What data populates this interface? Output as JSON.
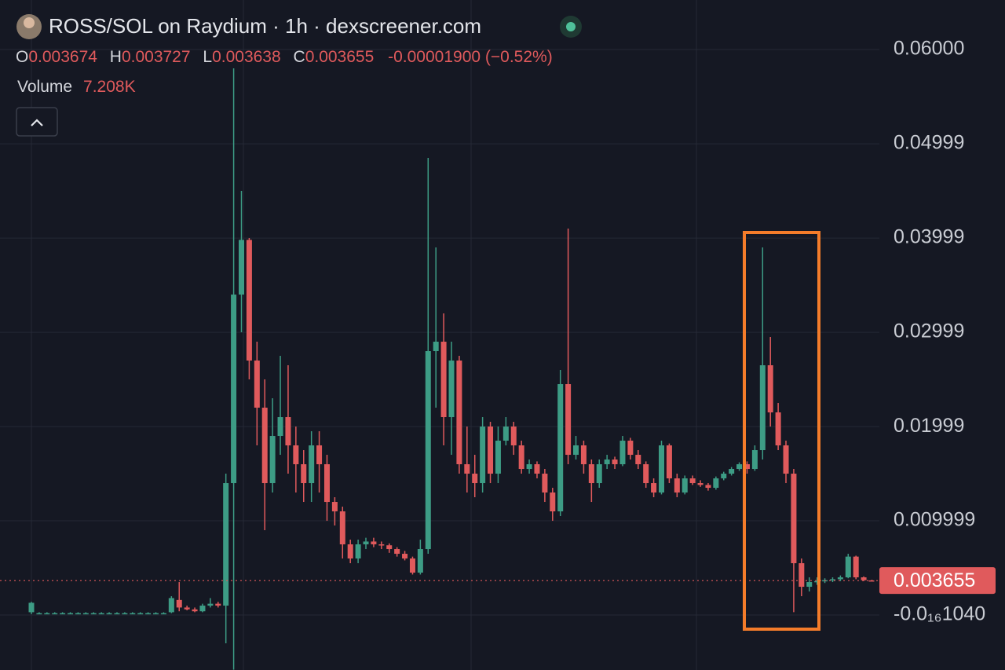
{
  "header": {
    "title": "ROSS/SOL on Raydium · 1h · dexscreener.com",
    "open_label": "O",
    "open": 0.003674,
    "high_label": "H",
    "high": 0.003727,
    "low_label": "L",
    "low": 0.003638,
    "close_label": "C",
    "close": 0.003655,
    "change": "-0.00001900 (−0.52%)",
    "volume_label": "Volume",
    "volume": "7.208K"
  },
  "chart_data": {
    "type": "candlestick",
    "up_color": "#3d9c85",
    "down_color": "#e05a5c",
    "grid": true,
    "last_price": 0.003655,
    "ylim": [
      -0.00583,
      0.06525
    ],
    "yticks": [
      {
        "value": -1.04e-17,
        "label": "-0.0₁₆1040"
      },
      0.009999,
      0.01999,
      0.02999,
      0.03999,
      0.04999,
      {
        "value": 0.06,
        "label": "0.06000"
      }
    ],
    "candles": [
      [
        0.0003,
        0.0014,
        0.0001,
        0.0013
      ],
      [
        0.0002,
        0.0003,
        0.0001,
        0.0002
      ],
      [
        0.0002,
        0.0003,
        0.0001,
        0.0002
      ],
      [
        0.0002,
        0.0003,
        0.0001,
        0.0002
      ],
      [
        0.0002,
        0.0003,
        0.0001,
        0.0002
      ],
      [
        0.0002,
        0.0003,
        0.0001,
        0.0002
      ],
      [
        0.0002,
        0.0003,
        0.0001,
        0.0002
      ],
      [
        0.0002,
        0.0003,
        0.0001,
        0.0002
      ],
      [
        0.0002,
        0.0003,
        0.0001,
        0.0002
      ],
      [
        0.0002,
        0.0003,
        0.0001,
        0.0002
      ],
      [
        0.0002,
        0.0003,
        0.0001,
        0.0002
      ],
      [
        0.0002,
        0.0003,
        0.0001,
        0.0002
      ],
      [
        0.0002,
        0.0003,
        0.0001,
        0.0002
      ],
      [
        0.0002,
        0.0003,
        0.0001,
        0.0002
      ],
      [
        0.0002,
        0.0003,
        0.0001,
        0.0002
      ],
      [
        0.0002,
        0.0003,
        0.0001,
        0.0002
      ],
      [
        0.0002,
        0.0003,
        0.0001,
        0.0002
      ],
      [
        0.0002,
        0.0003,
        0.0001,
        0.0002
      ],
      [
        0.0003,
        0.002,
        0.0002,
        0.0018
      ],
      [
        0.0016,
        0.0035,
        0.0004,
        0.0008
      ],
      [
        0.0008,
        0.001,
        0.0005,
        0.0006
      ],
      [
        0.0006,
        0.0008,
        0.0003,
        0.0004
      ],
      [
        0.0004,
        0.0012,
        0.0003,
        0.001
      ],
      [
        0.001,
        0.0018,
        0.0008,
        0.0012
      ],
      [
        0.0012,
        0.0014,
        0.0008,
        0.001
      ],
      [
        0.001,
        0.015,
        -0.003,
        0.014
      ],
      [
        0.014,
        0.058,
        -0.0058,
        0.034
      ],
      [
        0.034,
        0.045,
        0.03,
        0.0398
      ],
      [
        0.0398,
        0.04,
        0.025,
        0.027
      ],
      [
        0.027,
        0.029,
        0.018,
        0.022
      ],
      [
        0.022,
        0.025,
        0.009,
        0.014
      ],
      [
        0.014,
        0.023,
        0.013,
        0.019
      ],
      [
        0.019,
        0.0275,
        0.017,
        0.021
      ],
      [
        0.021,
        0.0265,
        0.015,
        0.018
      ],
      [
        0.018,
        0.02,
        0.013,
        0.016
      ],
      [
        0.016,
        0.0175,
        0.012,
        0.014
      ],
      [
        0.014,
        0.0195,
        0.012,
        0.018
      ],
      [
        0.018,
        0.0195,
        0.013,
        0.016
      ],
      [
        0.016,
        0.017,
        0.01,
        0.012
      ],
      [
        0.012,
        0.0125,
        0.0095,
        0.011
      ],
      [
        0.011,
        0.0115,
        0.006,
        0.0075
      ],
      [
        0.0075,
        0.008,
        0.0055,
        0.006
      ],
      [
        0.006,
        0.008,
        0.0055,
        0.0075
      ],
      [
        0.0075,
        0.0082,
        0.007,
        0.0078
      ],
      [
        0.0078,
        0.0082,
        0.0072,
        0.0075
      ],
      [
        0.0075,
        0.0078,
        0.007,
        0.0074
      ],
      [
        0.0074,
        0.0076,
        0.0066,
        0.007
      ],
      [
        0.007,
        0.0072,
        0.0062,
        0.0065
      ],
      [
        0.0065,
        0.0068,
        0.0058,
        0.006
      ],
      [
        0.006,
        0.0062,
        0.0043,
        0.0045
      ],
      [
        0.0045,
        0.008,
        0.0043,
        0.007
      ],
      [
        0.007,
        0.0485,
        0.0065,
        0.028
      ],
      [
        0.028,
        0.039,
        0.022,
        0.029
      ],
      [
        0.029,
        0.032,
        0.018,
        0.021
      ],
      [
        0.021,
        0.029,
        0.017,
        0.027
      ],
      [
        0.027,
        0.0275,
        0.015,
        0.016
      ],
      [
        0.016,
        0.02,
        0.013,
        0.015
      ],
      [
        0.015,
        0.017,
        0.0125,
        0.014
      ],
      [
        0.014,
        0.021,
        0.013,
        0.02
      ],
      [
        0.02,
        0.0205,
        0.014,
        0.015
      ],
      [
        0.015,
        0.02,
        0.014,
        0.0185
      ],
      [
        0.0185,
        0.021,
        0.018,
        0.02
      ],
      [
        0.02,
        0.0205,
        0.017,
        0.018
      ],
      [
        0.018,
        0.0185,
        0.015,
        0.0155
      ],
      [
        0.0155,
        0.0165,
        0.015,
        0.016
      ],
      [
        0.016,
        0.0163,
        0.0145,
        0.015
      ],
      [
        0.015,
        0.0155,
        0.012,
        0.013
      ],
      [
        0.013,
        0.0135,
        0.01,
        0.011
      ],
      [
        0.011,
        0.026,
        0.0105,
        0.0245
      ],
      [
        0.0245,
        0.041,
        0.016,
        0.017
      ],
      [
        0.017,
        0.019,
        0.0165,
        0.018
      ],
      [
        0.018,
        0.0185,
        0.015,
        0.016
      ],
      [
        0.016,
        0.0165,
        0.012,
        0.014
      ],
      [
        0.014,
        0.0165,
        0.0135,
        0.016
      ],
      [
        0.016,
        0.017,
        0.0155,
        0.0165
      ],
      [
        0.0165,
        0.0168,
        0.0155,
        0.016
      ],
      [
        0.016,
        0.019,
        0.0158,
        0.0185
      ],
      [
        0.0185,
        0.0188,
        0.0165,
        0.017
      ],
      [
        0.017,
        0.0175,
        0.0155,
        0.016
      ],
      [
        0.016,
        0.0163,
        0.0135,
        0.014
      ],
      [
        0.014,
        0.0145,
        0.0125,
        0.013
      ],
      [
        0.013,
        0.0185,
        0.0128,
        0.018
      ],
      [
        0.018,
        0.0182,
        0.014,
        0.0145
      ],
      [
        0.0145,
        0.015,
        0.0125,
        0.013
      ],
      [
        0.013,
        0.0148,
        0.0128,
        0.0145
      ],
      [
        0.0145,
        0.0148,
        0.0138,
        0.014
      ],
      [
        0.014,
        0.0143,
        0.0136,
        0.0138
      ],
      [
        0.0138,
        0.014,
        0.0132,
        0.0135
      ],
      [
        0.0135,
        0.0147,
        0.0133,
        0.0145
      ],
      [
        0.0145,
        0.0152,
        0.0143,
        0.015
      ],
      [
        0.015,
        0.0157,
        0.0148,
        0.0155
      ],
      [
        0.0155,
        0.0162,
        0.0153,
        0.016
      ],
      [
        0.016,
        0.0163,
        0.015,
        0.0155
      ],
      [
        0.0155,
        0.018,
        0.0153,
        0.0175
      ],
      [
        0.0175,
        0.039,
        0.0165,
        0.0265
      ],
      [
        0.0265,
        0.0295,
        0.02,
        0.0215
      ],
      [
        0.0215,
        0.0225,
        0.0175,
        0.018
      ],
      [
        0.018,
        0.0185,
        0.014,
        0.015
      ],
      [
        0.015,
        0.0155,
        0.0003,
        0.0055
      ],
      [
        0.0055,
        0.006,
        0.002,
        0.003
      ],
      [
        0.003,
        0.004,
        0.0025,
        0.0035
      ],
      [
        0.0035,
        0.004,
        0.0032,
        0.0036
      ],
      [
        0.0036,
        0.0039,
        0.0034,
        0.0037
      ],
      [
        0.0037,
        0.004,
        0.0035,
        0.0038
      ],
      [
        0.0038,
        0.0042,
        0.0036,
        0.004
      ],
      [
        0.004,
        0.0065,
        0.0039,
        0.0062
      ],
      [
        0.0062,
        0.0063,
        0.0038,
        0.004
      ],
      [
        0.004,
        0.0041,
        0.0036,
        0.0037
      ],
      [
        0.003674,
        0.003727,
        0.003638,
        0.003655
      ]
    ]
  }
}
